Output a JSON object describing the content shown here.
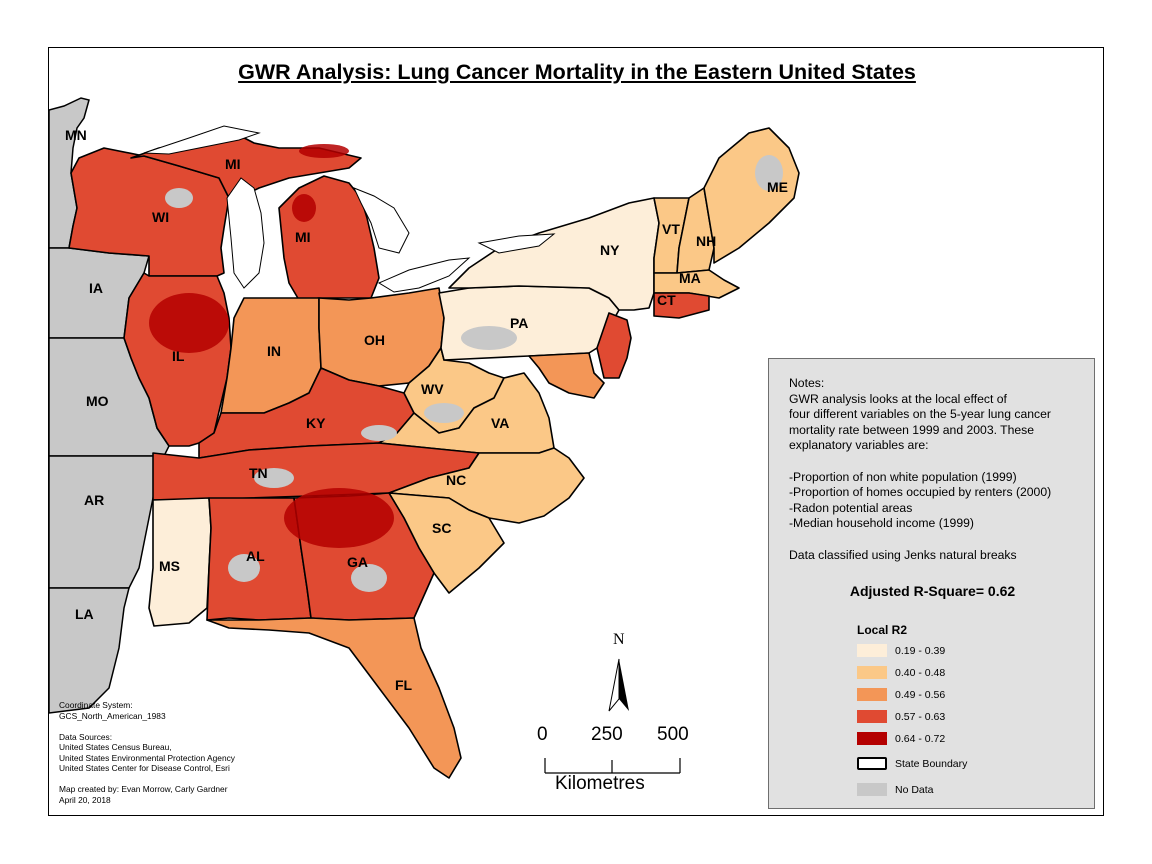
{
  "title": "GWR Analysis: Lung Cancer Mortality in the Eastern United States",
  "states": [
    {
      "abbr": "MN"
    },
    {
      "abbr": "IA"
    },
    {
      "abbr": "MO"
    },
    {
      "abbr": "AR"
    },
    {
      "abbr": "LA"
    },
    {
      "abbr": "WI"
    },
    {
      "abbr": "MI"
    },
    {
      "abbr": "MI"
    },
    {
      "abbr": "IL"
    },
    {
      "abbr": "IN"
    },
    {
      "abbr": "OH"
    },
    {
      "abbr": "KY"
    },
    {
      "abbr": "TN"
    },
    {
      "abbr": "MS"
    },
    {
      "abbr": "AL"
    },
    {
      "abbr": "GA"
    },
    {
      "abbr": "FL"
    },
    {
      "abbr": "SC"
    },
    {
      "abbr": "NC"
    },
    {
      "abbr": "VA"
    },
    {
      "abbr": "WV"
    },
    {
      "abbr": "PA"
    },
    {
      "abbr": "NY"
    },
    {
      "abbr": "VT"
    },
    {
      "abbr": "NH"
    },
    {
      "abbr": "ME"
    },
    {
      "abbr": "MA"
    },
    {
      "abbr": "CT"
    }
  ],
  "notes": {
    "lines": [
      "Notes:",
      "GWR analysis looks at the local effect of",
      "four different variables on the 5-year lung cancer",
      "mortality rate between 1999 and 2003. These",
      "explanatory variables are:",
      "",
      "-Proportion of non white population (1999)",
      "-Proportion of homes occupied by renters (2000)",
      "-Radon potential areas",
      "-Median household income (1999)",
      "",
      "Data classified using Jenks natural breaks"
    ],
    "r_square": "Adjusted R-Square= 0.62"
  },
  "legend": {
    "title": "Local R2",
    "classes": [
      {
        "label": "0.19 - 0.39",
        "color": "#fdeed9"
      },
      {
        "label": "0.40 - 0.48",
        "color": "#fbc887"
      },
      {
        "label": "0.49 - 0.56",
        "color": "#f39657"
      },
      {
        "label": "0.57 - 0.63",
        "color": "#e04a32"
      },
      {
        "label": "0.64 - 0.72",
        "color": "#b40000"
      }
    ],
    "state_boundary": "State Boundary",
    "no_data": "No Data",
    "no_data_color": "#c8c8c8"
  },
  "credits": {
    "lines": [
      "Coordinate System:",
      "GCS_North_American_1983",
      "",
      "Data Sources:",
      "United States Census Bureau,",
      "United States Environmental Protection Agency",
      "United States Center for Disease Control, Esri",
      "",
      "Map created by: Evan Morrow,  Carly Gardner",
      "April 20, 2018"
    ]
  },
  "scale": {
    "ticks": [
      "0",
      "250",
      "500"
    ],
    "unit": "Kilometres"
  },
  "north_label": "N",
  "colors": {
    "water": "#ffffff",
    "outside_states": "#c8c8c8",
    "boundary": "#000000"
  }
}
